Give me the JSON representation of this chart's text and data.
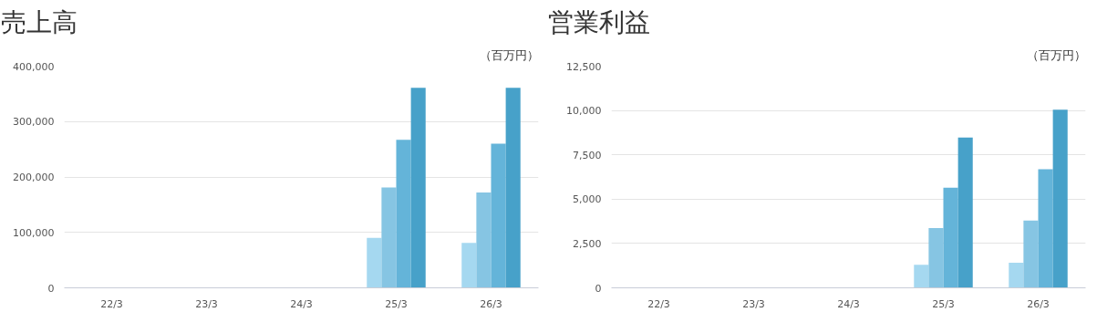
{
  "chart_data": [
    {
      "type": "bar",
      "title": "売上高",
      "annotations": [
        "（百万円）"
      ],
      "categories": [
        "22/3",
        "23/3",
        "24/3",
        "25/3",
        "26/3"
      ],
      "series": [
        {
          "color": "#a5d8f0",
          "values": [
            null,
            null,
            null,
            90000,
            81000
          ]
        },
        {
          "color": "#86c5e3",
          "values": [
            null,
            null,
            null,
            181000,
            172000
          ]
        },
        {
          "color": "#64b4d9",
          "values": [
            null,
            null,
            null,
            267000,
            260000
          ]
        },
        {
          "color": "#47a1c9",
          "values": [
            null,
            null,
            null,
            361000,
            361000
          ]
        }
      ],
      "ylim": [
        0,
        400000
      ],
      "yticks": [
        0,
        {
          "value": 100000,
          "label": "100,000"
        },
        {
          "value": 200000,
          "label": "200,000"
        },
        {
          "value": 300000,
          "label": "300,000"
        },
        {
          "value": 400000,
          "label": "400,000"
        }
      ],
      "grid": "y"
    },
    {
      "type": "bar",
      "title": "営業利益",
      "annotations": [
        "（百万円）"
      ],
      "categories": [
        "22/3",
        "23/3",
        "24/3",
        "25/3",
        "26/3"
      ],
      "series": [
        {
          "color": "#a5d8f0",
          "values": [
            null,
            null,
            null,
            1300,
            1410
          ]
        },
        {
          "color": "#86c5e3",
          "values": [
            null,
            null,
            null,
            3370,
            3800
          ]
        },
        {
          "color": "#64b4d9",
          "values": [
            null,
            null,
            null,
            5650,
            6690
          ]
        },
        {
          "color": "#47a1c9",
          "values": [
            null,
            null,
            null,
            8480,
            10050
          ]
        }
      ],
      "ylim": [
        0,
        12500
      ],
      "yticks": [
        0,
        {
          "value": 2500,
          "label": "2,500"
        },
        {
          "value": 5000,
          "label": "5,000"
        },
        {
          "value": 7500,
          "label": "7,500"
        },
        {
          "value": 10000,
          "label": "10,000"
        },
        {
          "value": 12500,
          "label": "12,500"
        }
      ],
      "grid": "y"
    }
  ]
}
